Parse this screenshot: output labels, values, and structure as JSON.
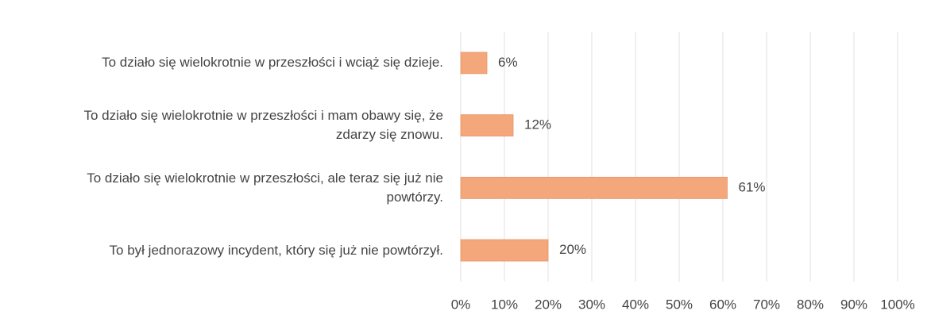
{
  "chart_data": {
    "type": "barh",
    "categories": [
      "To działo się wielokrotnie w przeszłości i wciąż się dzieje.",
      "To działo się wielokrotnie w przeszłości i mam obawy się, że zdarzy się znowu.",
      "To działo się wielokrotnie w przeszłości, ale teraz się już nie powtórzy.",
      "To był jednorazowy incydent, który się już nie powtórzył."
    ],
    "values": [
      6,
      12,
      61,
      20
    ],
    "value_labels": [
      "6%",
      "12%",
      "61%",
      "20%"
    ],
    "color": "#f4a77a",
    "xlim": [
      0,
      100
    ],
    "xticks": [
      {
        "value": 0,
        "label": "0%"
      },
      {
        "value": 10,
        "label": "10%"
      },
      {
        "value": 20,
        "label": "20%"
      },
      {
        "value": 30,
        "label": "30%"
      },
      {
        "value": 40,
        "label": "40%"
      },
      {
        "value": 50,
        "label": "50%"
      },
      {
        "value": 60,
        "label": "60%"
      },
      {
        "value": 70,
        "label": "70%"
      },
      {
        "value": 80,
        "label": "80%"
      },
      {
        "value": 90,
        "label": "90%"
      },
      {
        "value": 100,
        "label": "100%"
      }
    ],
    "grid": true
  }
}
